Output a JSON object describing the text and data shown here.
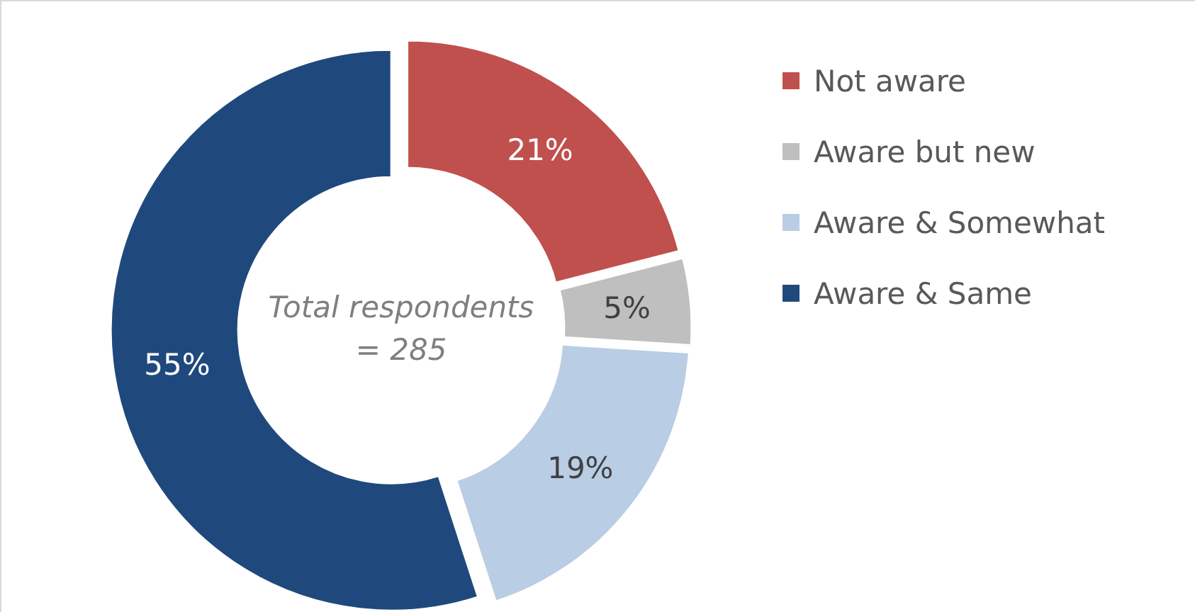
{
  "chart_data": {
    "type": "donut",
    "categories": [
      "Not aware",
      "Aware but new",
      "Aware & Somewhat",
      "Aware & Same"
    ],
    "values": [
      21,
      5,
      19,
      55
    ],
    "colors": [
      "#c0504d",
      "#bfbfbf",
      "#b9cde5",
      "#1f497d"
    ],
    "value_labels": [
      "21%",
      "5%",
      "19%",
      "55%"
    ],
    "legend": "right",
    "annotations": [
      "Total respondents\n= 285"
    ]
  }
}
